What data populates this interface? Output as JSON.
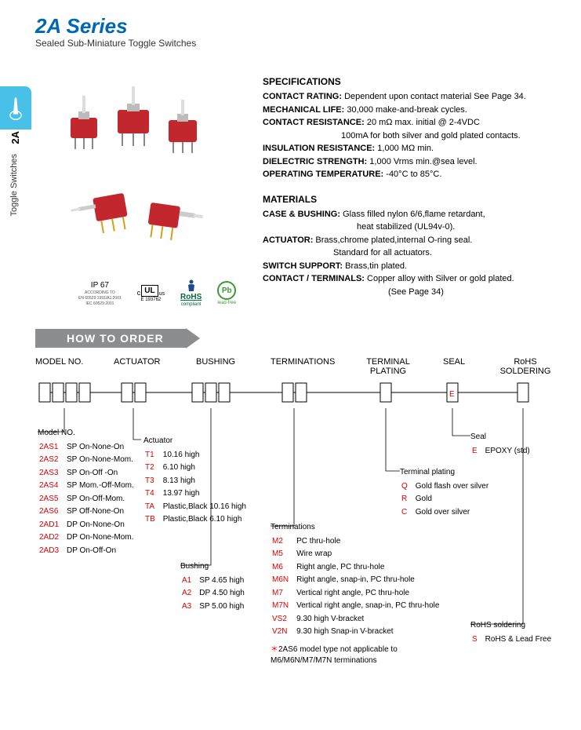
{
  "title": "2A Series",
  "subtitle": "Sealed Sub-Miniature Toggle Switches",
  "sideTab": {
    "label2a": "2A",
    "labelText": "Toggle Switches"
  },
  "certs": {
    "ip67": "IP 67",
    "ip67sub1": "ACCORDING TO",
    "ip67sub2": "EN 60529:1991/A1:2001",
    "ip67sub3": "IEC 60529:2001",
    "ul": "UL",
    "ulside": "us",
    "ulsub": "E 193762",
    "rohs": "RoHS",
    "rohssub": "compliant",
    "pb": "Pb",
    "pbsub": "lead-free"
  },
  "specs": {
    "h1": "SPECIFICATIONS",
    "r1b": "CONTACT RATING:",
    "r1t": " Dependent upon contact material See Page 34.",
    "r2b": "MECHANICAL LIFE:",
    "r2t": " 30,000 make-and-break cycles.",
    "r3b": "CONTACT RESISTANCE:",
    "r3t": " 20 mΩ max. initial @ 2-4VDC",
    "r3c": "100mA for both silver and gold plated contacts.",
    "r4b": "INSULATION RESISTANCE:",
    "r4t": " 1,000 MΩ min.",
    "r5b": "DIELECTRIC STRENGTH:",
    "r5t": " 1,000 Vrms min.@sea level.",
    "r6b": "OPERATING TEMPERATURE:",
    "r6t": " -40°C to 85°C.",
    "h2": "MATERIALS",
    "m1b": "CASE & BUSHING:",
    "m1t": " Glass filled nylon 6/6,flame retardant,",
    "m1c": "heat stabilized (UL94v-0).",
    "m2b": "ACTUATOR:",
    "m2t": " Brass,chrome plated,internal O-ring seal.",
    "m2c": "Standard for all actuators.",
    "m3b": "SWITCH  SUPPORT:",
    "m3t": " Brass,tin plated.",
    "m4b": "CONTACT / TERMINALS:",
    "m4t": " Copper alloy with Silver or gold plated.",
    "m4c": "(See Page 34)"
  },
  "howto": "HOW TO ORDER",
  "orderHeaders": {
    "h1": "MODEL NO.",
    "h2": "ACTUATOR",
    "h3": "BUSHING",
    "h4": "TERMINATIONS",
    "h5": "TERMINAL PLATING",
    "h6": "SEAL",
    "h7": "RoHS SOLDERING"
  },
  "sealBoxLetter": "E",
  "modelNo": {
    "hdr": "Model NO.",
    "rows": [
      [
        "2AS1",
        "SP On-None-On"
      ],
      [
        "2AS2",
        "SP On-None-Mom."
      ],
      [
        "2AS3",
        "SP On-Off -On"
      ],
      [
        "2AS4",
        "SP Mom.-Off-Mom."
      ],
      [
        "2AS5",
        "SP On-Off-Mom."
      ],
      [
        "2AS6",
        "SP Off-None-On"
      ],
      [
        "2AD1",
        "DP On-None-On"
      ],
      [
        "2AD2",
        "DP On-None-Mom."
      ],
      [
        "2AD3",
        "DP On-Off-On"
      ]
    ]
  },
  "actuator": {
    "hdr": "Actuator",
    "rows": [
      [
        "T1",
        "10.16 high"
      ],
      [
        "T2",
        "6.10 high"
      ],
      [
        "T3",
        "8.13 high"
      ],
      [
        "T4",
        "13.97 high"
      ],
      [
        "TA",
        "Plastic,Black 10.16 high"
      ],
      [
        "TB",
        "Plastic,Black 6.10 high"
      ]
    ]
  },
  "bushing": {
    "hdr": "Bushing",
    "rows": [
      [
        "A1",
        "SP 4.65 high"
      ],
      [
        "A2",
        "DP 4.50 high"
      ],
      [
        "A3",
        "SP 5.00 high"
      ]
    ]
  },
  "terminations": {
    "hdr": "Terminations",
    "rows": [
      [
        "M2",
        "PC thru-hole"
      ],
      [
        "M5",
        "Wire wrap"
      ],
      [
        "M6",
        "Right angle, PC thru-hole"
      ],
      [
        "M6N",
        "Right angle, snap-in, PC thru-hole"
      ],
      [
        "M7",
        "Vertical right angle, PC thru-hole"
      ],
      [
        "M7N",
        "Vertical right angle, snap-in, PC thru-hole"
      ],
      [
        "VS2",
        "9.30 high V-bracket"
      ],
      [
        "V2N",
        "9.30 high Snap-in V-bracket"
      ]
    ],
    "noteStar": "＊",
    "note": "2AS6 model type not applicable to M6/M6N/M7/M7N terminations"
  },
  "plating": {
    "hdr": "Terminal plating",
    "rows": [
      [
        "Q",
        "Gold flash over silver"
      ],
      [
        "R",
        "Gold"
      ],
      [
        "C",
        "Gold over silver"
      ]
    ]
  },
  "seal": {
    "hdr": "Seal",
    "rows": [
      [
        "E",
        "EPOXY (std)"
      ]
    ]
  },
  "rohs": {
    "hdr": "RoHS soldering",
    "rows": [
      [
        "S",
        "RoHS & Lead Free"
      ]
    ]
  }
}
